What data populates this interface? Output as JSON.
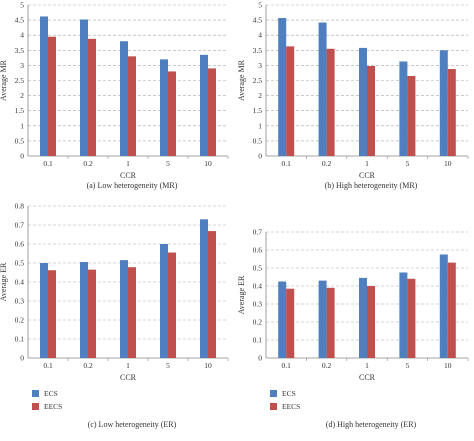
{
  "colors": {
    "ECS": "#4f7fbe",
    "EECS": "#c0504d",
    "grid": "#aaaaaa",
    "axis": "#888888",
    "text": "#333333"
  },
  "legend": [
    {
      "key": "ECS",
      "label": "ECS"
    },
    {
      "key": "EECS",
      "label": "EECS"
    }
  ],
  "chart_data": [
    {
      "type": "bar",
      "caption": "(a)  Low heterogeneity (MR)",
      "xlabel": "CCR",
      "ylabel": "Average MR",
      "ylim": [
        0,
        5
      ],
      "yticks": [
        "0",
        "0.5",
        "1",
        "1.5",
        "2",
        "2.5",
        "3",
        "3.5",
        "4",
        "4.5",
        "5"
      ],
      "categories": [
        "0.1",
        "0.2",
        "1",
        "5",
        "10"
      ],
      "grid": true,
      "series": [
        {
          "name": "ECS",
          "values": [
            4.62,
            4.52,
            3.8,
            3.2,
            3.35
          ]
        },
        {
          "name": "EECS",
          "values": [
            3.95,
            3.88,
            3.3,
            2.8,
            2.9
          ]
        }
      ]
    },
    {
      "type": "bar",
      "caption": "(b)  High heterogeneity (MR)",
      "xlabel": "CCR",
      "ylabel": "Average MR",
      "ylim": [
        0,
        5
      ],
      "yticks": [
        "0",
        "0.5",
        "1",
        "1.5",
        "2",
        "2.5",
        "3",
        "3.5",
        "4",
        "4.5",
        "5"
      ],
      "categories": [
        "0.1",
        "0.2",
        "1",
        "5",
        "10"
      ],
      "grid": true,
      "series": [
        {
          "name": "ECS",
          "values": [
            4.57,
            4.42,
            3.58,
            3.13,
            3.5
          ]
        },
        {
          "name": "EECS",
          "values": [
            3.63,
            3.55,
            2.98,
            2.65,
            2.88
          ]
        }
      ]
    },
    {
      "type": "bar",
      "caption": "(c)  Low heterogeneity (ER)",
      "xlabel": "CCR",
      "ylabel": "Average ER",
      "ylim": [
        0,
        0.8
      ],
      "yticks": [
        "0",
        "0.1",
        "0.2",
        "0.3",
        "0.4",
        "0.5",
        "0.6",
        "0.7",
        "0.8"
      ],
      "categories": [
        "0.1",
        "0.2",
        "1",
        "5",
        "10"
      ],
      "grid": true,
      "series": [
        {
          "name": "ECS",
          "values": [
            0.5,
            0.505,
            0.515,
            0.6,
            0.73
          ]
        },
        {
          "name": "EECS",
          "values": [
            0.462,
            0.465,
            0.478,
            0.555,
            0.668
          ]
        }
      ]
    },
    {
      "type": "bar",
      "caption": "(d)  High heterogeneity (ER)",
      "xlabel": "CCR",
      "ylabel": "Average ER",
      "ylim": [
        0,
        0.7
      ],
      "yticks": [
        "0",
        "0.1",
        "0.2",
        "0.3",
        "0.4",
        "0.5",
        "0.6",
        "0.7"
      ],
      "categories": [
        "0.1",
        "0.2",
        "1",
        "5",
        "10"
      ],
      "grid": true,
      "series": [
        {
          "name": "ECS",
          "values": [
            0.425,
            0.43,
            0.445,
            0.475,
            0.575
          ]
        },
        {
          "name": "EECS",
          "values": [
            0.385,
            0.39,
            0.4,
            0.44,
            0.53
          ]
        }
      ]
    }
  ]
}
